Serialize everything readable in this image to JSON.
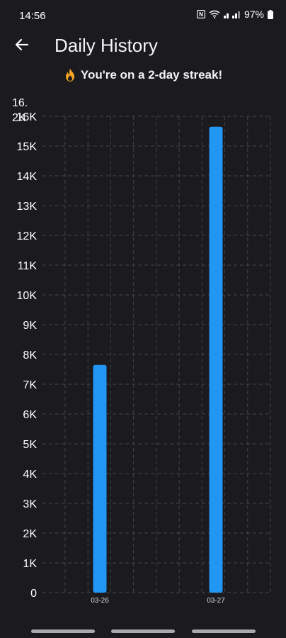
{
  "status_bar": {
    "time": "14:56",
    "battery_percent": "97%",
    "icons": [
      "nfc-icon",
      "wifi-icon",
      "signal-icon",
      "battery-icon"
    ]
  },
  "header": {
    "title": "Daily History",
    "back_icon": "arrow-back-icon"
  },
  "streak": {
    "text": "You're on a 2-day streak!",
    "icon": "fire-icon"
  },
  "colors": {
    "background": "#1b1a1f",
    "bar": "#2196f3",
    "grid": "#444444",
    "text": "#ffffff",
    "flame": "#f5a623"
  },
  "chart_data": {
    "type": "bar",
    "categories": [
      "03-26",
      "03-27"
    ],
    "values": [
      7650,
      15650
    ],
    "ylim": [
      0,
      16000
    ],
    "yticks": [
      "0",
      "1K",
      "2K",
      "3K",
      "4K",
      "5K",
      "6K",
      "7K",
      "8K",
      "9K",
      "10K",
      "11K",
      "12K",
      "13K",
      "14K",
      "15K",
      "16K"
    ],
    "top_label_overlap": "16.\n2K",
    "grid": true,
    "xlabel": "",
    "ylabel": "",
    "title": ""
  }
}
